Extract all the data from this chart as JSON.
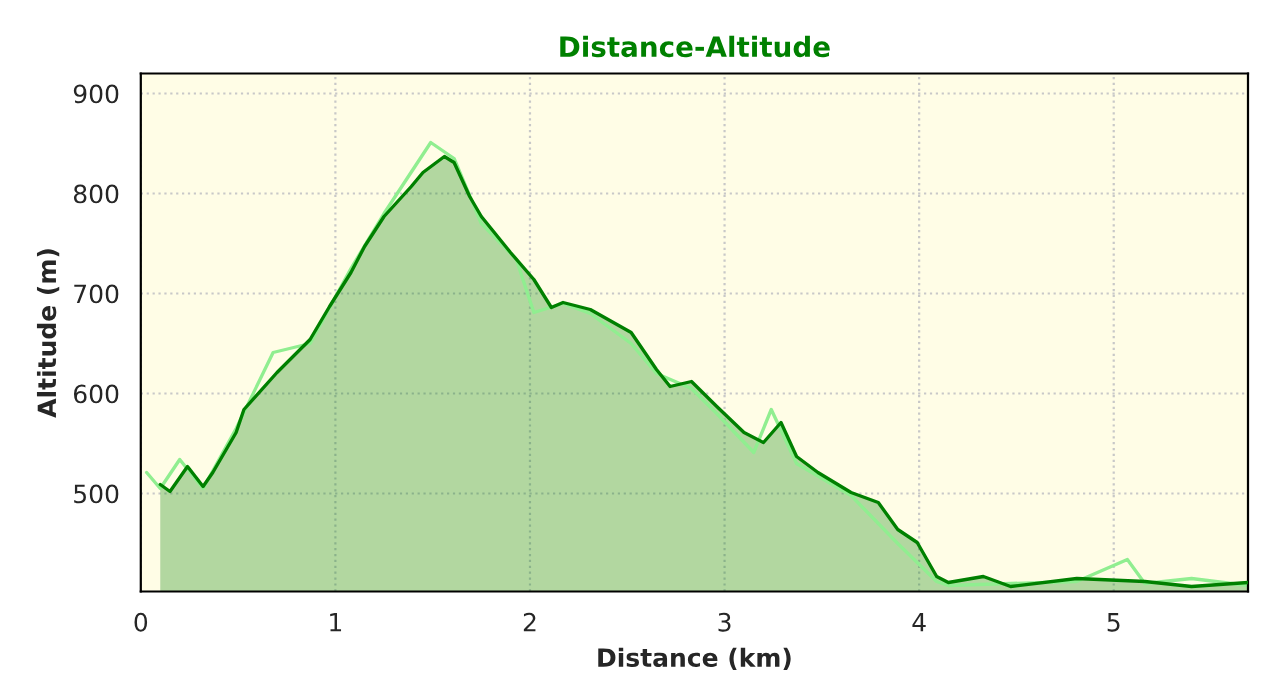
{
  "chart_data": {
    "type": "area",
    "title": "Distance-Altitude",
    "xlabel": "Distance (km)",
    "ylabel": "Altitude (m)",
    "xlim": [
      0,
      5.69
    ],
    "ylim": [
      402,
      920
    ],
    "xticks": [
      0,
      1,
      2,
      3,
      4,
      5
    ],
    "yticks": [
      500,
      600,
      700,
      800,
      900
    ],
    "grid": true,
    "series": [
      {
        "type": "line",
        "color": "#90ee90",
        "x": [
          0.03,
          0.1,
          0.2,
          0.32,
          0.49,
          0.68,
          0.87,
          1.08,
          1.25,
          1.49,
          1.61,
          1.75,
          1.93,
          2.02,
          2.17,
          2.31,
          2.52,
          2.65,
          2.83,
          2.96,
          3.15,
          3.24,
          3.37,
          3.65,
          3.89,
          4.09,
          4.15,
          4.47,
          4.81,
          5.07,
          5.16,
          5.4,
          5.69
        ],
        "values": [
          521,
          505,
          534,
          505,
          565,
          641,
          650,
          725,
          780,
          851,
          835,
          770,
          734,
          681,
          690,
          680,
          650,
          620,
          605,
          580,
          541,
          584,
          530,
          498,
          450,
          412,
          408,
          410,
          412,
          434,
          410,
          415,
          408
        ]
      },
      {
        "color": "#008000",
        "x": [
          0.1,
          0.15,
          0.24,
          0.32,
          0.37,
          0.49,
          0.53,
          0.7,
          0.87,
          0.97,
          1.08,
          1.15,
          1.25,
          1.39,
          1.45,
          1.56,
          1.61,
          1.69,
          1.75,
          1.9,
          2.02,
          2.11,
          2.17,
          2.31,
          2.52,
          2.65,
          2.72,
          2.83,
          2.96,
          3.1,
          3.2,
          3.29,
          3.37,
          3.48,
          3.65,
          3.79,
          3.89,
          3.99,
          4.09,
          4.15,
          4.33,
          4.47,
          4.81,
          5.16,
          5.4,
          5.69
        ],
        "values": [
          509,
          502,
          527,
          507,
          521,
          561,
          584,
          621,
          654,
          687,
          721,
          747,
          777,
          807,
          821,
          837,
          831,
          797,
          777,
          741,
          714,
          686,
          691,
          684,
          661,
          624,
          607,
          612,
          587,
          561,
          551,
          571,
          537,
          521,
          501,
          491,
          464,
          451,
          417,
          411,
          417,
          407,
          415,
          412,
          407,
          411
        ]
      }
    ]
  }
}
